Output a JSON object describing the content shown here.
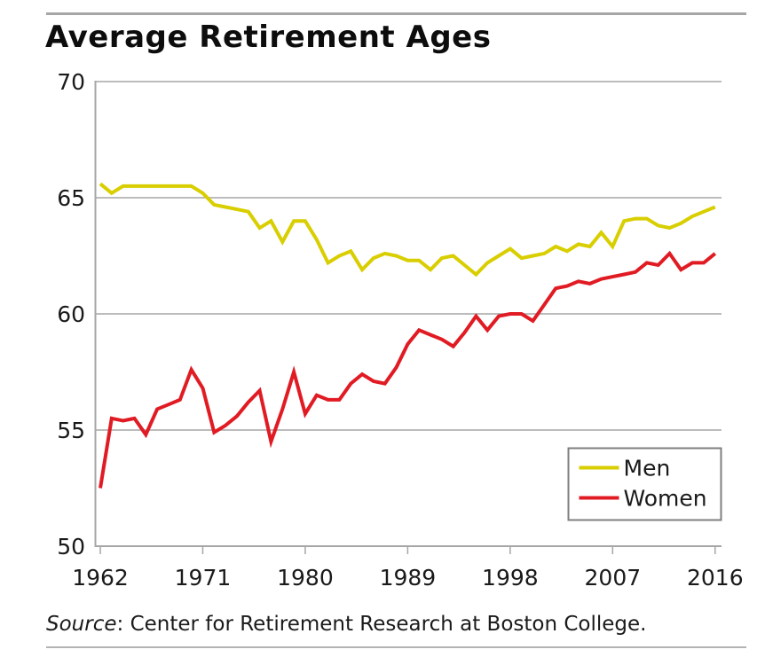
{
  "page": {
    "title": "Average Retirement Ages",
    "source_prefix": "Source",
    "source_rest": ": Center for Retirement Research at Boston College."
  },
  "chart_data": {
    "type": "line",
    "title": "Average Retirement Ages",
    "x": [
      1962,
      1963,
      1964,
      1965,
      1966,
      1967,
      1968,
      1969,
      1970,
      1971,
      1972,
      1973,
      1974,
      1975,
      1976,
      1977,
      1978,
      1979,
      1980,
      1981,
      1982,
      1983,
      1984,
      1985,
      1986,
      1987,
      1988,
      1989,
      1990,
      1991,
      1992,
      1993,
      1994,
      1995,
      1996,
      1997,
      1998,
      1999,
      2000,
      2001,
      2002,
      2003,
      2004,
      2005,
      2006,
      2007,
      2008,
      2009,
      2010,
      2011,
      2012,
      2013,
      2014,
      2015,
      2016
    ],
    "x_ticks": [
      1962,
      1971,
      1980,
      1989,
      1998,
      2007,
      2016
    ],
    "y_ticks": [
      70,
      65,
      60,
      55,
      50
    ],
    "ylim": [
      50,
      70
    ],
    "xlabel": "",
    "ylabel": "",
    "grid": "horizontal",
    "grid_color": "#a6a6a6",
    "axis_color": "#a6a6a6",
    "legend_position": "inside-bottom-right",
    "legend_border_color": "#7f7f7f",
    "series": [
      {
        "name": "Men",
        "color": "#d8ce00",
        "values": [
          65.6,
          65.2,
          65.5,
          65.5,
          65.5,
          65.5,
          65.5,
          65.5,
          65.5,
          65.2,
          64.7,
          64.6,
          64.5,
          64.4,
          63.7,
          64.0,
          63.1,
          64.0,
          64.0,
          63.2,
          62.2,
          62.5,
          62.7,
          61.9,
          62.4,
          62.6,
          62.5,
          62.3,
          62.3,
          61.9,
          62.4,
          62.5,
          62.1,
          61.7,
          62.2,
          62.5,
          62.8,
          62.4,
          62.5,
          62.6,
          62.9,
          62.7,
          63.0,
          62.9,
          63.5,
          62.9,
          64.0,
          64.1,
          64.1,
          63.8,
          63.7,
          63.9,
          64.2,
          64.4,
          64.6
        ]
      },
      {
        "name": "Women",
        "color": "#e11b23",
        "values": [
          52.5,
          55.5,
          55.4,
          55.5,
          54.8,
          55.9,
          56.1,
          56.3,
          57.6,
          56.8,
          54.9,
          55.2,
          55.6,
          56.2,
          56.7,
          54.5,
          55.9,
          57.5,
          55.7,
          56.5,
          56.3,
          56.3,
          57.0,
          57.4,
          57.1,
          57.0,
          57.7,
          58.7,
          59.3,
          59.1,
          58.9,
          58.6,
          59.2,
          59.9,
          59.3,
          59.9,
          60.0,
          60.0,
          59.7,
          60.4,
          61.1,
          61.2,
          61.4,
          61.3,
          61.5,
          61.6,
          61.7,
          61.8,
          62.2,
          62.1,
          62.6,
          61.9,
          62.2,
          62.2,
          62.6
        ]
      }
    ]
  }
}
